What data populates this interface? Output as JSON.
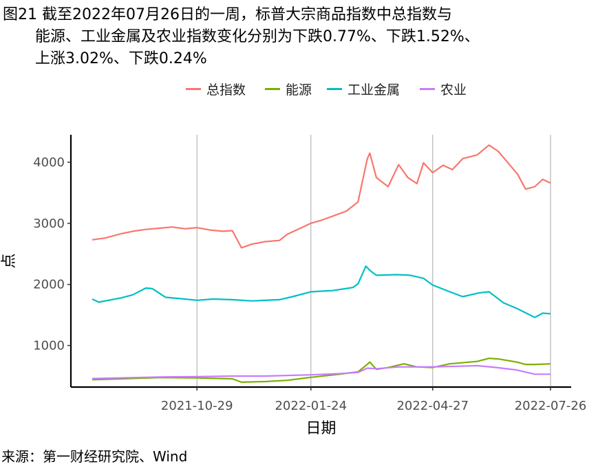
{
  "title": {
    "line1": "图21  截至2022年07月26日的一周，标普大宗商品指数中总指数与",
    "line2": "能源、工业金属及农业指数变化分别为下跌0.77%、下跌1.52%、",
    "line3": "上涨3.02%、下跌0.24%"
  },
  "source": "来源：第一财经研究院、Wind",
  "chart_data": {
    "type": "line",
    "title": "图21  截至2022年07月26日的一周，标普大宗商品指数中总指数与能源、工业金属及农业指数变化分别为下跌0.77%、下跌1.52%、上涨3.02%、下跌0.24%",
    "xlabel": "日期",
    "ylabel": "点",
    "x_range": [
      "2021-08-10",
      "2022-07-26"
    ],
    "ylim": [
      320,
      4450
    ],
    "x_ticks": [
      "2021-10-29",
      "2022-01-24",
      "2022-04-27",
      "2022-07-26"
    ],
    "y_ticks": [
      1000,
      2000,
      3000,
      4000
    ],
    "grid": "vertical major lines at x ticks",
    "legend_position": "top",
    "series": [
      {
        "name": "总指数",
        "color": "#F8766D",
        "points": [
          [
            "2021-08-10",
            2730
          ],
          [
            "2021-08-20",
            2760
          ],
          [
            "2021-09-01",
            2830
          ],
          [
            "2021-09-10",
            2870
          ],
          [
            "2021-09-20",
            2900
          ],
          [
            "2021-09-30",
            2920
          ],
          [
            "2021-10-10",
            2940
          ],
          [
            "2021-10-20",
            2910
          ],
          [
            "2021-10-29",
            2930
          ],
          [
            "2021-11-08",
            2890
          ],
          [
            "2021-11-18",
            2870
          ],
          [
            "2021-11-25",
            2880
          ],
          [
            "2021-12-02",
            2600
          ],
          [
            "2021-12-10",
            2660
          ],
          [
            "2021-12-20",
            2700
          ],
          [
            "2021-12-31",
            2720
          ],
          [
            "2022-01-06",
            2820
          ],
          [
            "2022-01-14",
            2900
          ],
          [
            "2022-01-24",
            3000
          ],
          [
            "2022-02-01",
            3050
          ],
          [
            "2022-02-10",
            3120
          ],
          [
            "2022-02-20",
            3200
          ],
          [
            "2022-03-01",
            3350
          ],
          [
            "2022-03-08",
            4050
          ],
          [
            "2022-03-10",
            4150
          ],
          [
            "2022-03-15",
            3750
          ],
          [
            "2022-03-24",
            3600
          ],
          [
            "2022-04-01",
            3960
          ],
          [
            "2022-04-08",
            3750
          ],
          [
            "2022-04-15",
            3650
          ],
          [
            "2022-04-20",
            3990
          ],
          [
            "2022-04-27",
            3830
          ],
          [
            "2022-05-05",
            3950
          ],
          [
            "2022-05-12",
            3880
          ],
          [
            "2022-05-20",
            4060
          ],
          [
            "2022-05-31",
            4120
          ],
          [
            "2022-06-09",
            4280
          ],
          [
            "2022-06-16",
            4180
          ],
          [
            "2022-06-24",
            3980
          ],
          [
            "2022-07-01",
            3800
          ],
          [
            "2022-07-07",
            3560
          ],
          [
            "2022-07-14",
            3600
          ],
          [
            "2022-07-20",
            3720
          ],
          [
            "2022-07-26",
            3660
          ]
        ]
      },
      {
        "name": "能源",
        "color": "#7CAE00",
        "points": [
          [
            "2021-08-10",
            440
          ],
          [
            "2021-09-01",
            455
          ],
          [
            "2021-10-01",
            475
          ],
          [
            "2021-10-29",
            470
          ],
          [
            "2021-11-25",
            455
          ],
          [
            "2021-12-02",
            400
          ],
          [
            "2021-12-20",
            410
          ],
          [
            "2022-01-06",
            430
          ],
          [
            "2022-01-24",
            480
          ],
          [
            "2022-02-15",
            530
          ],
          [
            "2022-03-01",
            570
          ],
          [
            "2022-03-08",
            690
          ],
          [
            "2022-03-10",
            730
          ],
          [
            "2022-03-15",
            610
          ],
          [
            "2022-03-24",
            640
          ],
          [
            "2022-04-05",
            700
          ],
          [
            "2022-04-15",
            650
          ],
          [
            "2022-04-27",
            640
          ],
          [
            "2022-05-10",
            700
          ],
          [
            "2022-05-31",
            740
          ],
          [
            "2022-06-09",
            790
          ],
          [
            "2022-06-16",
            780
          ],
          [
            "2022-06-30",
            730
          ],
          [
            "2022-07-07",
            690
          ],
          [
            "2022-07-14",
            690
          ],
          [
            "2022-07-26",
            700
          ]
        ]
      },
      {
        "name": "工业金属",
        "color": "#00BFC4",
        "points": [
          [
            "2021-08-10",
            1760
          ],
          [
            "2021-08-15",
            1710
          ],
          [
            "2021-09-01",
            1780
          ],
          [
            "2021-09-10",
            1830
          ],
          [
            "2021-09-20",
            1940
          ],
          [
            "2021-09-25",
            1930
          ],
          [
            "2021-10-05",
            1790
          ],
          [
            "2021-10-20",
            1760
          ],
          [
            "2021-10-29",
            1740
          ],
          [
            "2021-11-10",
            1760
          ],
          [
            "2021-11-25",
            1750
          ],
          [
            "2021-12-10",
            1730
          ],
          [
            "2021-12-31",
            1750
          ],
          [
            "2022-01-10",
            1800
          ],
          [
            "2022-01-24",
            1880
          ],
          [
            "2022-02-10",
            1900
          ],
          [
            "2022-02-25",
            1950
          ],
          [
            "2022-03-01",
            2010
          ],
          [
            "2022-03-07",
            2300
          ],
          [
            "2022-03-10",
            2230
          ],
          [
            "2022-03-15",
            2150
          ],
          [
            "2022-03-31",
            2160
          ],
          [
            "2022-04-10",
            2150
          ],
          [
            "2022-04-20",
            2100
          ],
          [
            "2022-04-27",
            1990
          ],
          [
            "2022-05-10",
            1880
          ],
          [
            "2022-05-20",
            1800
          ],
          [
            "2022-06-01",
            1860
          ],
          [
            "2022-06-09",
            1880
          ],
          [
            "2022-06-20",
            1700
          ],
          [
            "2022-07-01",
            1600
          ],
          [
            "2022-07-14",
            1460
          ],
          [
            "2022-07-20",
            1530
          ],
          [
            "2022-07-26",
            1520
          ]
        ]
      },
      {
        "name": "农业",
        "color": "#C77CFF",
        "points": [
          [
            "2021-08-10",
            460
          ],
          [
            "2021-09-01",
            470
          ],
          [
            "2021-10-01",
            485
          ],
          [
            "2021-10-29",
            490
          ],
          [
            "2021-11-25",
            500
          ],
          [
            "2021-12-20",
            500
          ],
          [
            "2022-01-24",
            520
          ],
          [
            "2022-02-15",
            540
          ],
          [
            "2022-03-01",
            560
          ],
          [
            "2022-03-08",
            630
          ],
          [
            "2022-03-15",
            620
          ],
          [
            "2022-04-01",
            650
          ],
          [
            "2022-04-27",
            650
          ],
          [
            "2022-05-15",
            660
          ],
          [
            "2022-05-31",
            670
          ],
          [
            "2022-06-15",
            640
          ],
          [
            "2022-06-30",
            600
          ],
          [
            "2022-07-14",
            530
          ],
          [
            "2022-07-26",
            530
          ]
        ]
      }
    ]
  }
}
